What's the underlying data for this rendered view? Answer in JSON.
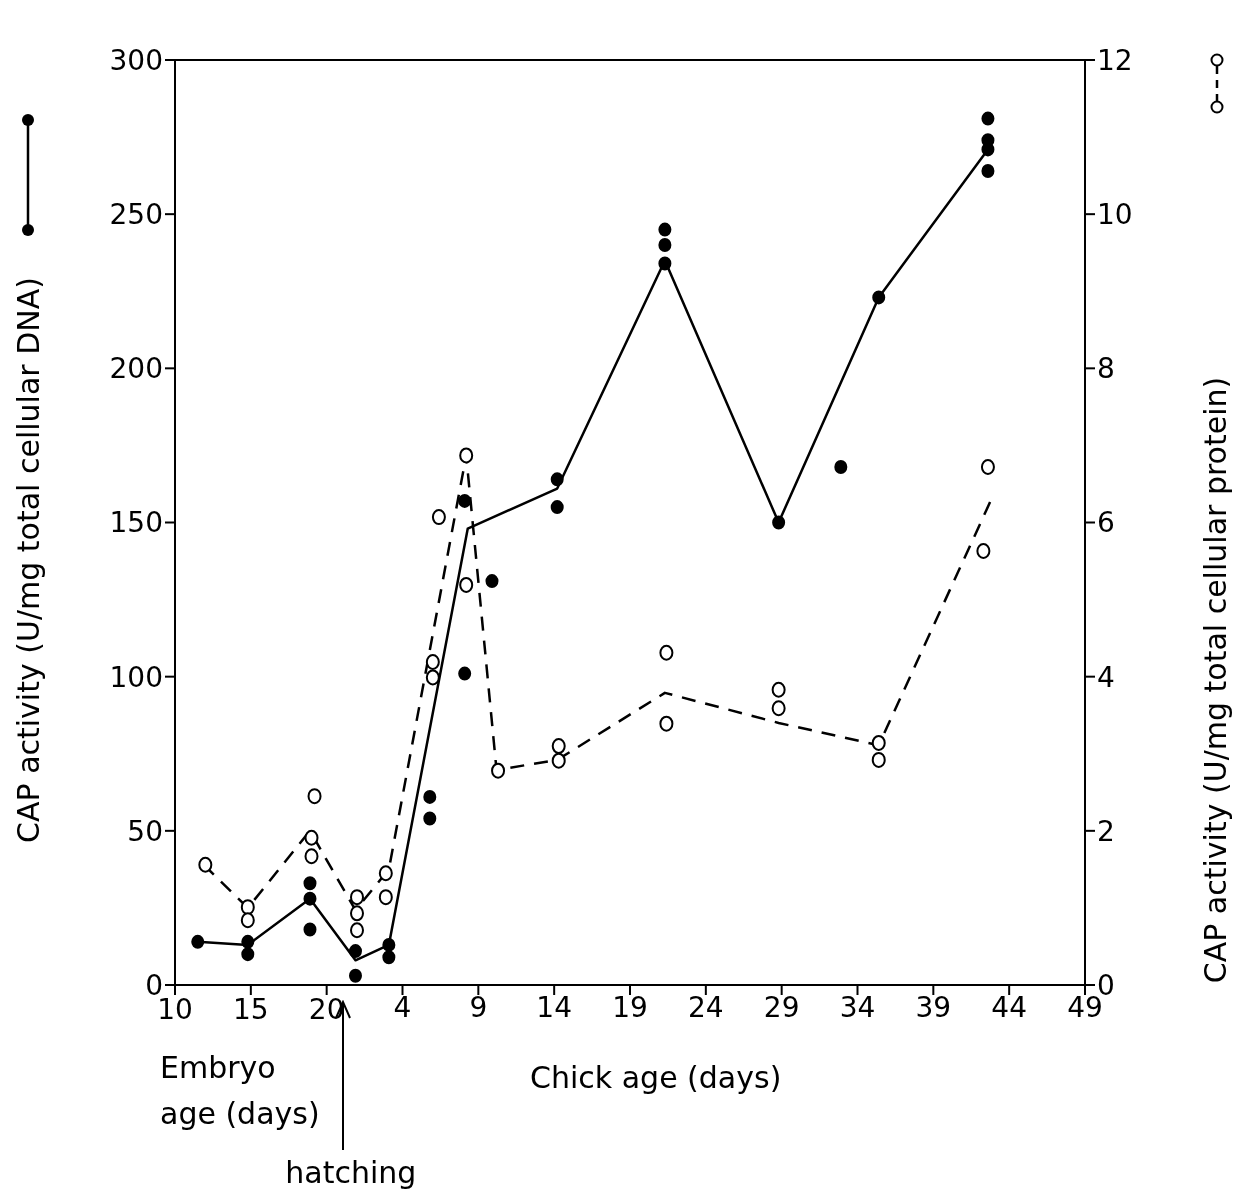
{
  "chart_data": {
    "type": "line",
    "xlabel": "Chick age (days)",
    "ylabel": "CAP activity (U/mg total cellular DNA)",
    "y2label": "CAP activity (U/mg total cellular protein)",
    "annotations": [
      "Embryo age (days)",
      "hatching"
    ],
    "xlim": [
      -11,
      49
    ],
    "xticks": [
      4,
      9,
      14,
      19,
      24,
      29,
      34,
      39,
      44,
      49
    ],
    "x2lim": [
      10,
      70
    ],
    "x2ticks": [
      10,
      15,
      20
    ],
    "ylim": [
      0,
      300
    ],
    "yticks": [
      0,
      50,
      100,
      150,
      200,
      250,
      300
    ],
    "y2lim": [
      0,
      12
    ],
    "y2ticks": [
      0,
      2,
      4,
      6,
      8,
      10,
      12
    ],
    "grid": false,
    "legend": false,
    "series": [
      {
        "type": "line",
        "color": "#000000",
        "line_style": "solid",
        "marker": "none",
        "x": [
          -9.5,
          -6.2,
          -2.1,
          0.9,
          3.1,
          8.3,
          14.2,
          21.3,
          28.8,
          35.4,
          42.6
        ],
        "values": [
          14,
          13,
          28,
          8,
          13,
          148,
          161,
          235,
          150,
          223,
          271
        ]
      },
      {
        "type": "scatter",
        "color": "#000000",
        "marker": "circle",
        "x": [
          -9.5,
          -6.2,
          -6.2,
          -2.1,
          -2.1,
          -2.1,
          0.9,
          0.9,
          3.1,
          3.1,
          5.8,
          5.8,
          8.1,
          8.1,
          9.9,
          14.2,
          14.2,
          21.3,
          21.3,
          21.3,
          28.8,
          32.9,
          35.4,
          42.6,
          42.6,
          42.6,
          42.6
        ],
        "values": [
          14,
          14,
          10,
          33,
          18,
          28,
          11,
          3,
          13,
          9,
          61,
          54,
          157,
          101,
          131,
          164,
          155,
          245,
          240,
          234,
          150,
          168,
          223,
          281,
          274,
          271,
          264
        ]
      },
      {
        "type": "line",
        "axis": "y2",
        "color": "#000000",
        "line_style": "dashed",
        "marker": "none",
        "x": [
          -9.1,
          -6.2,
          -2.1,
          0.9,
          3.1,
          8.2,
          10.2,
          14.2,
          21.3,
          28.8,
          35.4,
          42.8
        ],
        "values": [
          1.56,
          1.0,
          2.0,
          0.97,
          1.5,
          6.87,
          2.79,
          2.92,
          3.79,
          3.4,
          3.11,
          6.29
        ]
      },
      {
        "type": "scatter",
        "axis": "y2",
        "color": "#000000",
        "marker": "circle",
        "x": [
          -9.0,
          -6.2,
          -6.2,
          -1.8,
          -2.0,
          -2.0,
          1.0,
          1.0,
          1.0,
          2.9,
          2.9,
          6.4,
          6.0,
          6.0,
          8.2,
          8.2,
          10.3,
          14.3,
          14.3,
          21.4,
          21.4,
          28.8,
          28.8,
          35.4,
          35.4,
          42.6,
          42.3
        ],
        "values": [
          1.56,
          1.01,
          0.84,
          2.45,
          1.91,
          1.67,
          1.14,
          0.93,
          0.71,
          1.45,
          1.14,
          6.07,
          4.19,
          3.99,
          6.87,
          5.19,
          2.78,
          3.1,
          2.91,
          4.31,
          3.39,
          3.83,
          3.59,
          3.14,
          2.92,
          6.72,
          5.63
        ]
      }
    ]
  }
}
